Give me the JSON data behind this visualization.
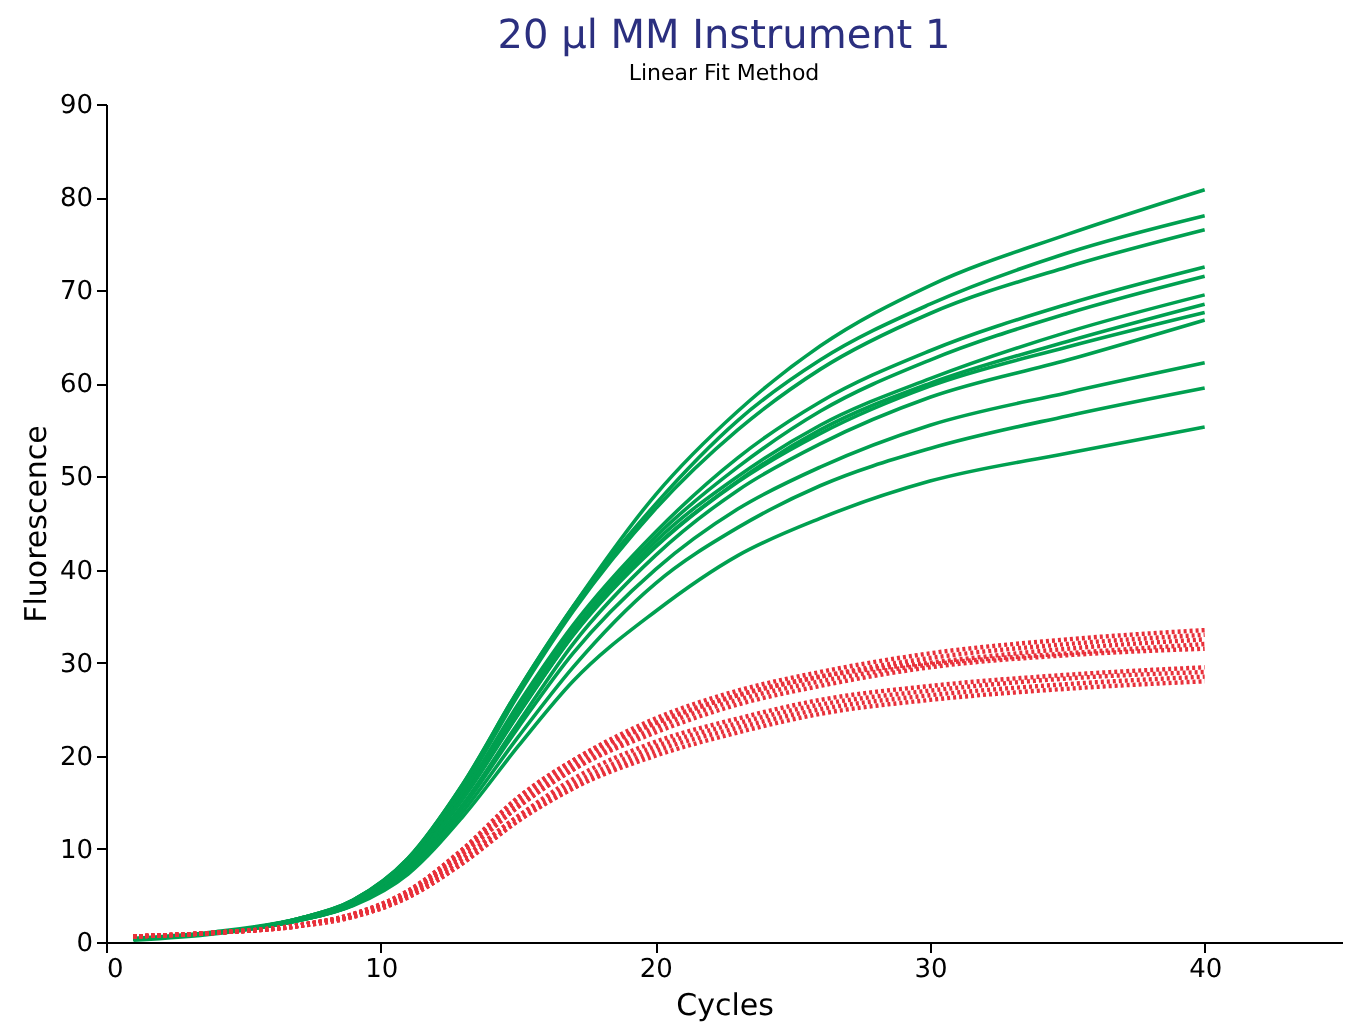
{
  "chart_data": {
    "type": "line",
    "title": "20 µl MM Instrument 1",
    "subtitle": "Linear Fit Method",
    "xlabel": "Cycles",
    "ylabel": "Fluorescence",
    "x": [
      1,
      4,
      7,
      9,
      11,
      13,
      15,
      17,
      20,
      23,
      26,
      30,
      35,
      40
    ],
    "xlim": [
      0,
      45
    ],
    "xticks": [
      0,
      10,
      20,
      30,
      40
    ],
    "ylim": [
      0,
      90
    ],
    "yticks": [
      0,
      10,
      20,
      30,
      40,
      50,
      60,
      70,
      80,
      90
    ],
    "grid": false,
    "marker": "none",
    "series": [
      {
        "color": "#00a050",
        "line_style": "solid",
        "values": [
          0.3,
          1,
          2.5,
          4.5,
          9,
          17,
          27,
          36,
          48,
          57,
          64,
          70.5,
          76,
          80.8
        ]
      },
      {
        "color": "#00a050",
        "line_style": "solid",
        "values": [
          0.3,
          1,
          2.5,
          4.5,
          9,
          17,
          27,
          36,
          47,
          56,
          62.5,
          68.5,
          74,
          78
        ]
      },
      {
        "color": "#00a050",
        "line_style": "solid",
        "values": [
          0.3,
          1,
          2.5,
          4.5,
          8.8,
          16.5,
          26.5,
          35.5,
          46.5,
          55,
          61.5,
          67.5,
          72.5,
          76.5
        ]
      },
      {
        "color": "#00a050",
        "line_style": "solid",
        "values": [
          0.3,
          1,
          2.4,
          4.3,
          8.5,
          16,
          25.5,
          34,
          44,
          52,
          58,
          63.5,
          68.5,
          72.5
        ]
      },
      {
        "color": "#00a050",
        "line_style": "solid",
        "values": [
          0.3,
          1,
          2.4,
          4.3,
          8.5,
          16,
          25,
          33.5,
          43.5,
          51,
          57,
          62.5,
          67.5,
          71.5
        ]
      },
      {
        "color": "#00a050",
        "line_style": "solid",
        "values": [
          0.3,
          1,
          2.4,
          4.2,
          8.3,
          15.5,
          24.5,
          33,
          43,
          50,
          55.5,
          60.5,
          65.5,
          69.5
        ]
      },
      {
        "color": "#00a050",
        "line_style": "solid",
        "values": [
          0.3,
          1,
          2.4,
          4.2,
          8.3,
          15.5,
          24.5,
          33,
          42.5,
          49.5,
          55,
          60,
          64.5,
          68.5
        ]
      },
      {
        "color": "#00a050",
        "line_style": "solid",
        "values": [
          0.4,
          1.1,
          2.5,
          4.3,
          8.3,
          15.4,
          24.4,
          32.9,
          42.4,
          49.4,
          54.6,
          59.7,
          63.9,
          67.6
        ]
      },
      {
        "color": "#00a050",
        "line_style": "solid",
        "values": [
          0.2,
          0.9,
          2.3,
          4,
          7.9,
          14.8,
          23.5,
          32,
          41.5,
          48.5,
          53.5,
          58.5,
          62.5,
          66.8
        ]
      },
      {
        "color": "#00a050",
        "line_style": "solid",
        "values": [
          0.3,
          1,
          2.3,
          4,
          7.8,
          14.5,
          23,
          31,
          40,
          46.5,
          51,
          55.5,
          59,
          62.2
        ]
      },
      {
        "color": "#00a050",
        "line_style": "solid",
        "values": [
          0.3,
          1,
          2.3,
          4,
          7.5,
          14,
          22,
          29.5,
          38.5,
          44.5,
          49,
          53,
          56.5,
          59.5
        ]
      },
      {
        "color": "#00a050",
        "line_style": "solid",
        "values": [
          0.3,
          1,
          2.3,
          3.9,
          7.3,
          13.5,
          21,
          28,
          35.5,
          41.5,
          45.5,
          49.5,
          52.5,
          55.3
        ]
      },
      {
        "color": "#e8303a",
        "line_style": "dotted",
        "values": [
          0.6,
          1,
          1.8,
          3,
          5.5,
          10,
          15.5,
          19.5,
          24,
          27,
          29,
          31,
          32.5,
          33.5
        ]
      },
      {
        "color": "#e8303a",
        "line_style": "dotted",
        "values": [
          0.6,
          1,
          1.8,
          3,
          5.5,
          10,
          15.5,
          19.5,
          23.5,
          26.5,
          28.5,
          30.5,
          32,
          33
        ]
      },
      {
        "color": "#e8303a",
        "line_style": "dotted",
        "values": [
          0.6,
          1,
          1.8,
          3,
          5.3,
          9.8,
          15,
          19,
          23.5,
          26.5,
          28.5,
          30,
          31.5,
          32.5
        ]
      },
      {
        "color": "#e8303a",
        "line_style": "dotted",
        "values": [
          0.6,
          1,
          1.8,
          2.9,
          5.2,
          9.5,
          14.5,
          18.5,
          23,
          26,
          28,
          29.8,
          31,
          32
        ]
      },
      {
        "color": "#e8303a",
        "line_style": "dotted",
        "values": [
          0.6,
          1,
          1.8,
          2.9,
          5.2,
          9.5,
          14.5,
          18.5,
          22.5,
          25.5,
          27.5,
          29.5,
          30.8,
          31.5
        ]
      },
      {
        "color": "#e8303a",
        "line_style": "dotted",
        "values": [
          0.6,
          1,
          1.7,
          2.8,
          5,
          9,
          13.5,
          17.5,
          21.5,
          24,
          26,
          27.5,
          28.7,
          29.5
        ]
      },
      {
        "color": "#e8303a",
        "line_style": "dotted",
        "values": [
          0.6,
          1,
          1.7,
          2.8,
          5,
          9,
          13.5,
          17,
          21,
          23.5,
          25.5,
          27,
          28.3,
          29
        ]
      },
      {
        "color": "#e8303a",
        "line_style": "dotted",
        "values": [
          0.6,
          1,
          1.7,
          2.7,
          4.8,
          8.5,
          13,
          16.5,
          20.5,
          23,
          25,
          26.5,
          27.7,
          28.5
        ]
      },
      {
        "color": "#e8303a",
        "line_style": "dotted",
        "values": [
          0.6,
          1,
          1.7,
          2.7,
          4.8,
          8.5,
          13,
          16.5,
          20,
          22.5,
          24.5,
          26,
          27.2,
          28
        ]
      }
    ]
  }
}
